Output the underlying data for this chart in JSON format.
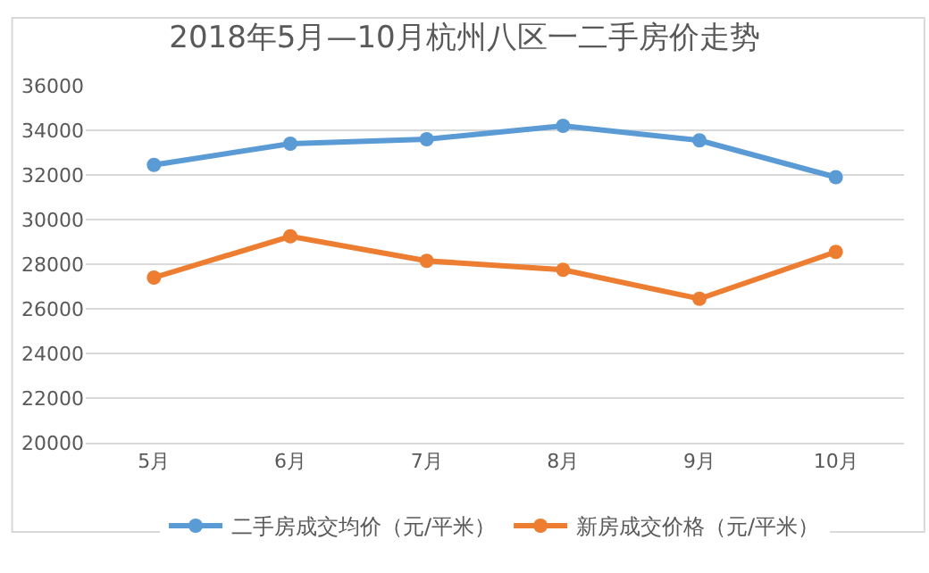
{
  "chart_data": {
    "type": "line",
    "title": "2018年5月—10月杭州八区一二手房价走势",
    "categories": [
      "5月",
      "6月",
      "7月",
      "8月",
      "9月",
      "10月"
    ],
    "series": [
      {
        "name": "二手房成交均价（元/平米）",
        "color": "#5b9bd5",
        "values": [
          32450,
          33400,
          33600,
          34200,
          33550,
          31900
        ]
      },
      {
        "name": "新房成交价格（元/平米）",
        "color": "#ed7d31",
        "values": [
          27400,
          29250,
          28150,
          27750,
          26450,
          28550
        ]
      }
    ],
    "ylim": [
      20000,
      36000
    ],
    "yticks": [
      20000,
      22000,
      24000,
      26000,
      28000,
      30000,
      32000,
      34000,
      36000
    ],
    "grid": "y",
    "legend": "bottom",
    "marker": "circle",
    "line_style": "solid"
  }
}
